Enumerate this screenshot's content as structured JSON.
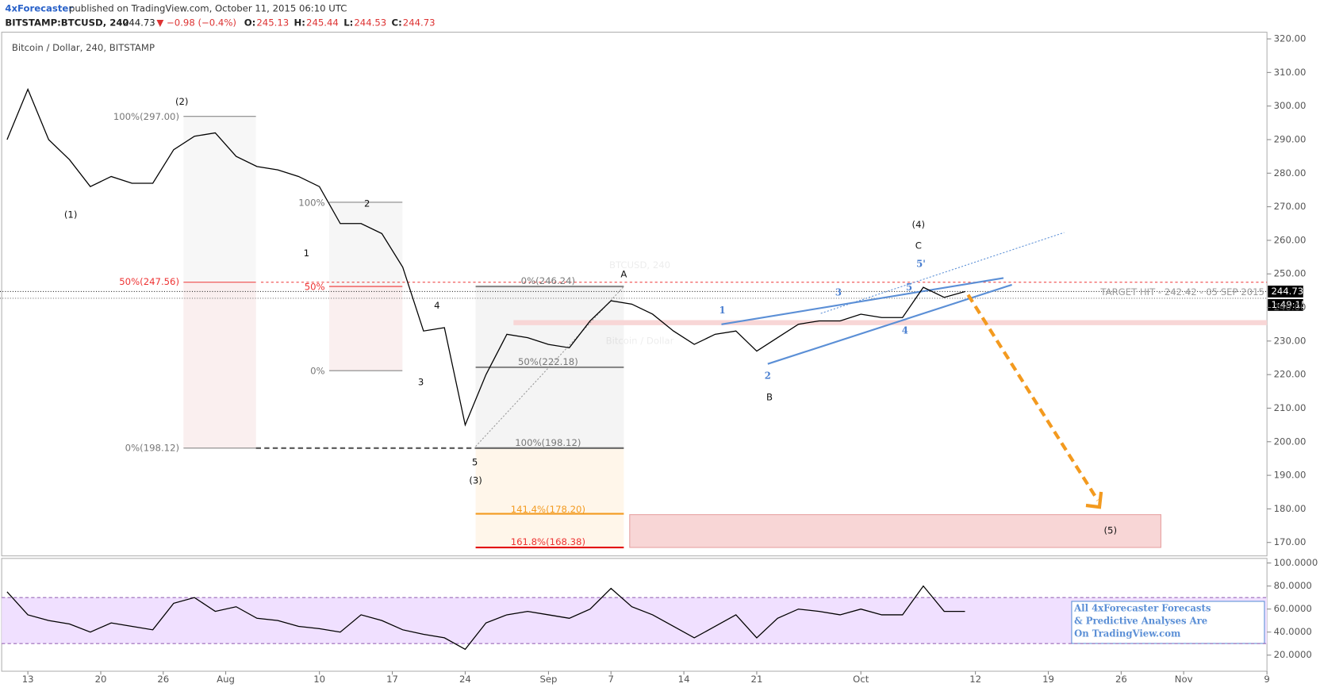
{
  "header": {
    "author": "4xForecaster",
    "published": "published on TradingView.com, October 11, 2015 06:10 UTC",
    "symbol": "BITSTAMP:BTCUSD, 240",
    "last": "244.73",
    "change": "▼ −0.98 (−0.4%)",
    "ohlc": [
      {
        "label": "O:",
        "value": "245.13"
      },
      {
        "label": "H:",
        "value": "245.44"
      },
      {
        "label": "L:",
        "value": "244.53"
      },
      {
        "label": "C:",
        "value": "244.73"
      }
    ]
  },
  "chart_data": [
    {
      "type": "line",
      "title": "Bitcoin / Dollar, 240, BITSTAMP",
      "watermark": "BTCUSD, 240",
      "watermark_sub": "Bitcoin / Dollar",
      "color": "#000000",
      "x": [
        "07-11",
        "07-13",
        "07-15",
        "07-17",
        "07-19",
        "07-21",
        "07-23",
        "07-25",
        "07-27",
        "07-29",
        "07-31",
        "08-02",
        "08-04",
        "08-06",
        "08-08",
        "08-10",
        "08-12",
        "08-14",
        "08-16",
        "08-18",
        "08-20",
        "08-22",
        "08-24",
        "08-26",
        "08-28",
        "08-30",
        "09-01",
        "09-03",
        "09-05",
        "09-07",
        "09-09",
        "09-11",
        "09-13",
        "09-15",
        "09-17",
        "09-19",
        "09-21",
        "09-23",
        "09-25",
        "09-27",
        "09-29",
        "10-01",
        "10-03",
        "10-05",
        "10-07",
        "10-09",
        "10-11"
      ],
      "values": [
        290,
        305,
        290,
        284,
        276,
        279,
        277,
        277,
        287,
        291,
        292,
        285,
        282,
        281,
        279,
        276,
        265,
        265,
        262,
        252,
        233,
        234,
        205,
        220,
        232,
        231,
        229,
        228,
        236,
        242,
        241,
        238,
        233,
        229,
        232,
        233,
        227,
        231,
        235,
        236,
        236,
        238,
        237,
        237,
        246,
        243,
        244.73
      ],
      "xlim": [
        "07-10",
        "11-09"
      ],
      "xticks": [
        {
          "value": "07-13",
          "label": "13"
        },
        {
          "value": "07-20",
          "label": "20"
        },
        {
          "value": "07-26",
          "label": "26"
        },
        {
          "value": "08-01",
          "label": "Aug"
        },
        {
          "value": "08-10",
          "label": "10"
        },
        {
          "value": "08-17",
          "label": "17"
        },
        {
          "value": "08-24",
          "label": "24"
        },
        {
          "value": "09-01",
          "label": "Sep"
        },
        {
          "value": "09-07",
          "label": "7"
        },
        {
          "value": "09-14",
          "label": "14"
        },
        {
          "value": "09-21",
          "label": "21"
        },
        {
          "value": "10-01",
          "label": "Oct"
        },
        {
          "value": "10-12",
          "label": "12"
        },
        {
          "value": "10-19",
          "label": "19"
        },
        {
          "value": "10-26",
          "label": "26"
        },
        {
          "value": "11-01",
          "label": "Nov"
        },
        {
          "value": "11-09",
          "label": "9"
        }
      ],
      "ylim": [
        166,
        322
      ],
      "yticks": [
        {
          "value": 170,
          "label": "170.00"
        },
        {
          "value": 180,
          "label": "180.00"
        },
        {
          "value": 190,
          "label": "190.00"
        },
        {
          "value": 200,
          "label": "200.00"
        },
        {
          "value": 210,
          "label": "210.00"
        },
        {
          "value": 220,
          "label": "220.00"
        },
        {
          "value": 230,
          "label": "230.00"
        },
        {
          "value": 240,
          "label": "240.00"
        },
        {
          "value": 250,
          "label": "250.00"
        },
        {
          "value": 260,
          "label": "260.00"
        },
        {
          "value": 270,
          "label": "270.00"
        },
        {
          "value": 280,
          "label": "280.00"
        },
        {
          "value": 290,
          "label": "290.00"
        },
        {
          "value": 300,
          "label": "300.00"
        },
        {
          "value": 310,
          "label": "310.00"
        },
        {
          "value": 320,
          "label": "320.00"
        }
      ],
      "last_label": "244.73",
      "countdown": "1:49:15",
      "target": "TARGET HIT - 242.42 - 05 SEP 2015",
      "annotations": [
        "(2)",
        "(1)",
        "1",
        "2",
        "3",
        "4",
        "5",
        "(3)",
        "A",
        "B",
        "C",
        "(4)",
        "5'",
        "(5)",
        "1",
        "2",
        "3",
        "4",
        "5",
        "100%(297.00)",
        "50%(247.56)",
        "0%(198.12)",
        "100%",
        "50%",
        "0%",
        "0%(246.24)",
        "50%(222.18)",
        "100%(198.12)",
        "141.4%(178.20)",
        "161.8%(168.38)"
      ]
    },
    {
      "type": "line",
      "color": "#000000",
      "values": [
        75,
        55,
        50,
        47,
        40,
        48,
        45,
        42,
        65,
        70,
        58,
        62,
        52,
        50,
        45,
        43,
        40,
        55,
        50,
        42,
        38,
        35,
        25,
        48,
        55,
        58,
        55,
        52,
        60,
        78,
        62,
        55,
        45,
        35,
        45,
        55,
        35,
        52,
        60,
        58,
        55,
        60,
        55,
        55,
        80,
        58,
        58
      ],
      "ylim": [
        6,
        104
      ],
      "yticks": [
        {
          "value": 20,
          "label": "20.0000"
        },
        {
          "value": 40,
          "label": "40.0000"
        },
        {
          "value": 60,
          "label": "60.0000"
        },
        {
          "value": 80,
          "label": "80.0000"
        },
        {
          "value": 100,
          "label": "100.0000"
        }
      ],
      "bands": [
        30,
        70
      ],
      "promo": [
        "All 4xForecaster Forecasts",
        "& Predictive Analyses Are",
        "On TradingView.com"
      ]
    }
  ]
}
